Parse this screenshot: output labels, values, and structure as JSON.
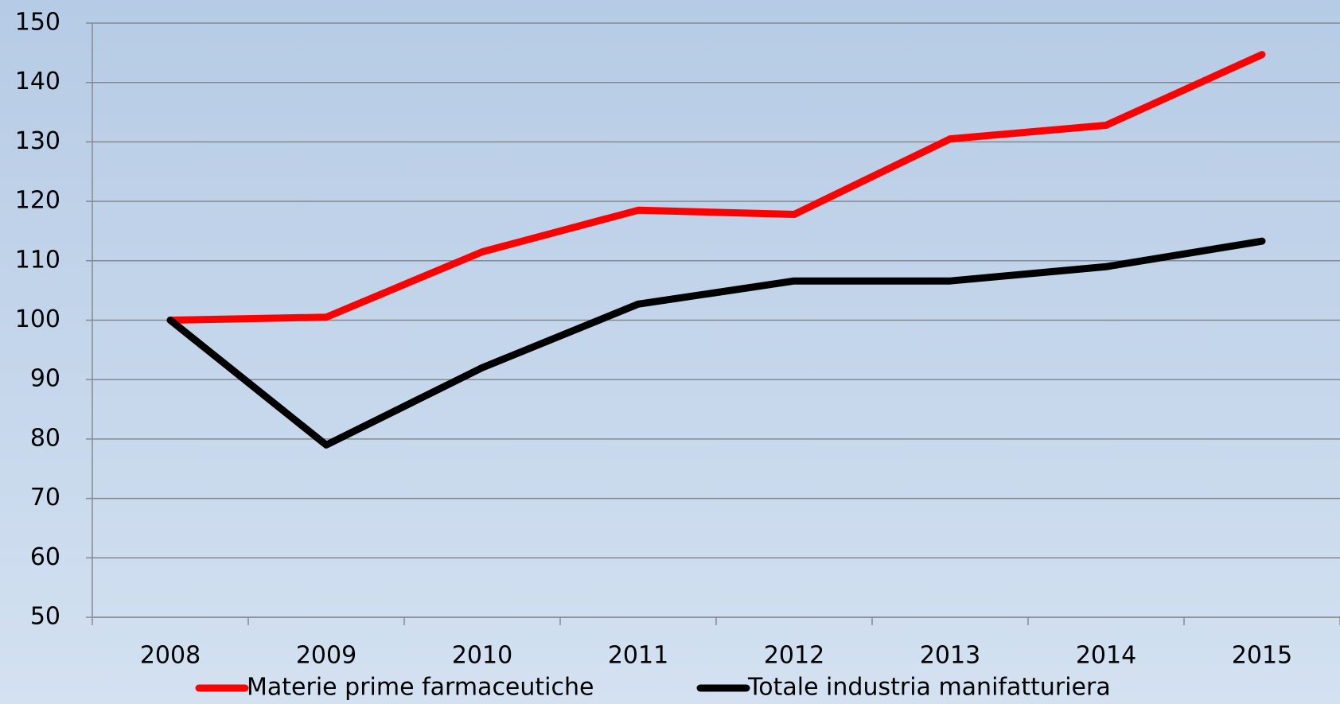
{
  "chart_data": {
    "type": "line",
    "categories": [
      "2008",
      "2009",
      "2010",
      "2011",
      "2012",
      "2013",
      "2014",
      "2015"
    ],
    "series": [
      {
        "name": "Materie prime farmaceutiche",
        "color": "#ff0000",
        "values": [
          100,
          100.5,
          111.5,
          118.5,
          117.8,
          130.5,
          132.8,
          144.7
        ]
      },
      {
        "name": "Totale industria manifatturiera",
        "color": "#000000",
        "values": [
          100,
          79,
          92,
          102.7,
          106.6,
          106.6,
          109,
          113.3
        ]
      }
    ],
    "ylim": [
      50,
      150
    ],
    "yticks": [
      50,
      60,
      70,
      80,
      90,
      100,
      110,
      120,
      130,
      140,
      150
    ],
    "grid": true,
    "legend": "bottom"
  }
}
